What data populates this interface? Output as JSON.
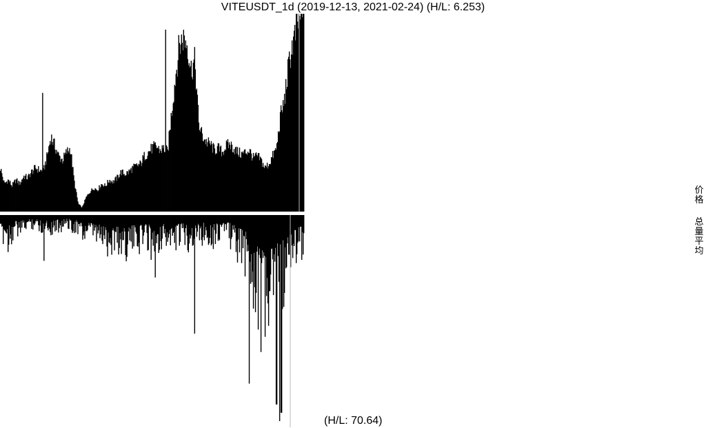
{
  "chart_data": {
    "type": "bar",
    "title": "VITEUSDT_1d (2019-12-13, 2021-02-24) (H/L: 6.253)",
    "volume_note": "(H/L: 70.64)",
    "legend": [
      "价格",
      "总量平均"
    ],
    "legend_placement": "right",
    "grid": false,
    "date_range": [
      "2019-12-13",
      "2021-02-24"
    ],
    "series": [
      {
        "values_relative_to_max": [
          0.22,
          0.14,
          0.16,
          0.13,
          0.16,
          0.14,
          0.18,
          0.17,
          0.2,
          0.22,
          0.21,
          0.2,
          0.28,
          0.38,
          0.33,
          0.28,
          0.26,
          0.3,
          0.32,
          0.15,
          0.04,
          0.02,
          0.07,
          0.1,
          0.12,
          0.11,
          0.14,
          0.13,
          0.16,
          0.15,
          0.17,
          0.2,
          0.19,
          0.2,
          0.22,
          0.23,
          0.24,
          0.28,
          0.3,
          0.32,
          0.33,
          0.31,
          0.32,
          0.3,
          0.5,
          0.68,
          0.84,
          0.88,
          0.85,
          0.72,
          0.76,
          0.44,
          0.38,
          0.35,
          0.34,
          0.31,
          0.32,
          0.3,
          0.33,
          0.34,
          0.32,
          0.3,
          0.29,
          0.3,
          0.31,
          0.27,
          0.28,
          0.26,
          0.22,
          0.24,
          0.28,
          0.32,
          0.48,
          0.56,
          0.72,
          0.84,
          0.9,
          1.0,
          0.96
        ]
      },
      {
        "values_relative_to_max": [
          0.12,
          0.1,
          0.14,
          0.1,
          0.08,
          0.09,
          0.07,
          0.06,
          0.05,
          0.05,
          0.06,
          0.07,
          0.06,
          0.08,
          0.07,
          0.06,
          0.06,
          0.05,
          0.05,
          0.06,
          0.07,
          0.1,
          0.12,
          0.1,
          0.11,
          0.12,
          0.13,
          0.14,
          0.15,
          0.16,
          0.14,
          0.15,
          0.17,
          0.16,
          0.15,
          0.14,
          0.14,
          0.13,
          0.12,
          0.12,
          0.16,
          0.14,
          0.13,
          0.12,
          0.15,
          0.17,
          0.13,
          0.12,
          0.11,
          0.12,
          0.13,
          0.13,
          0.12,
          0.1,
          0.11,
          0.1,
          0.12,
          0.11,
          0.09,
          0.08,
          0.1,
          0.12,
          0.15,
          0.18,
          0.2,
          0.24,
          0.28,
          0.35,
          0.43,
          0.48,
          0.55,
          0.5,
          0.42,
          0.38,
          0.36,
          0.33,
          0.3,
          0.22,
          0.18,
          0.16,
          0.14
        ]
      }
    ],
    "spikes": [
      {
        "series": 0,
        "position": 0.14,
        "value_relative_to_max": 0.6
      },
      {
        "series": 0,
        "position": 0.545,
        "value_relative_to_max": 0.92
      },
      {
        "series": 0,
        "position": 0.975,
        "value_relative_to_max": 1.0
      },
      {
        "series": 1,
        "position": 0.143,
        "value_relative_to_max": 0.22
      },
      {
        "series": 1,
        "position": 0.51,
        "value_relative_to_max": 0.3
      },
      {
        "series": 1,
        "position": 0.64,
        "value_relative_to_max": 0.57
      },
      {
        "series": 1,
        "position": 0.82,
        "value_relative_to_max": 0.81
      },
      {
        "series": 1,
        "position": 0.91,
        "value_relative_to_max": 0.91
      },
      {
        "series": 1,
        "position": 0.92,
        "value_relative_to_max": 0.99
      },
      {
        "series": 1,
        "position": 0.926,
        "value_relative_to_max": 0.95
      }
    ]
  }
}
